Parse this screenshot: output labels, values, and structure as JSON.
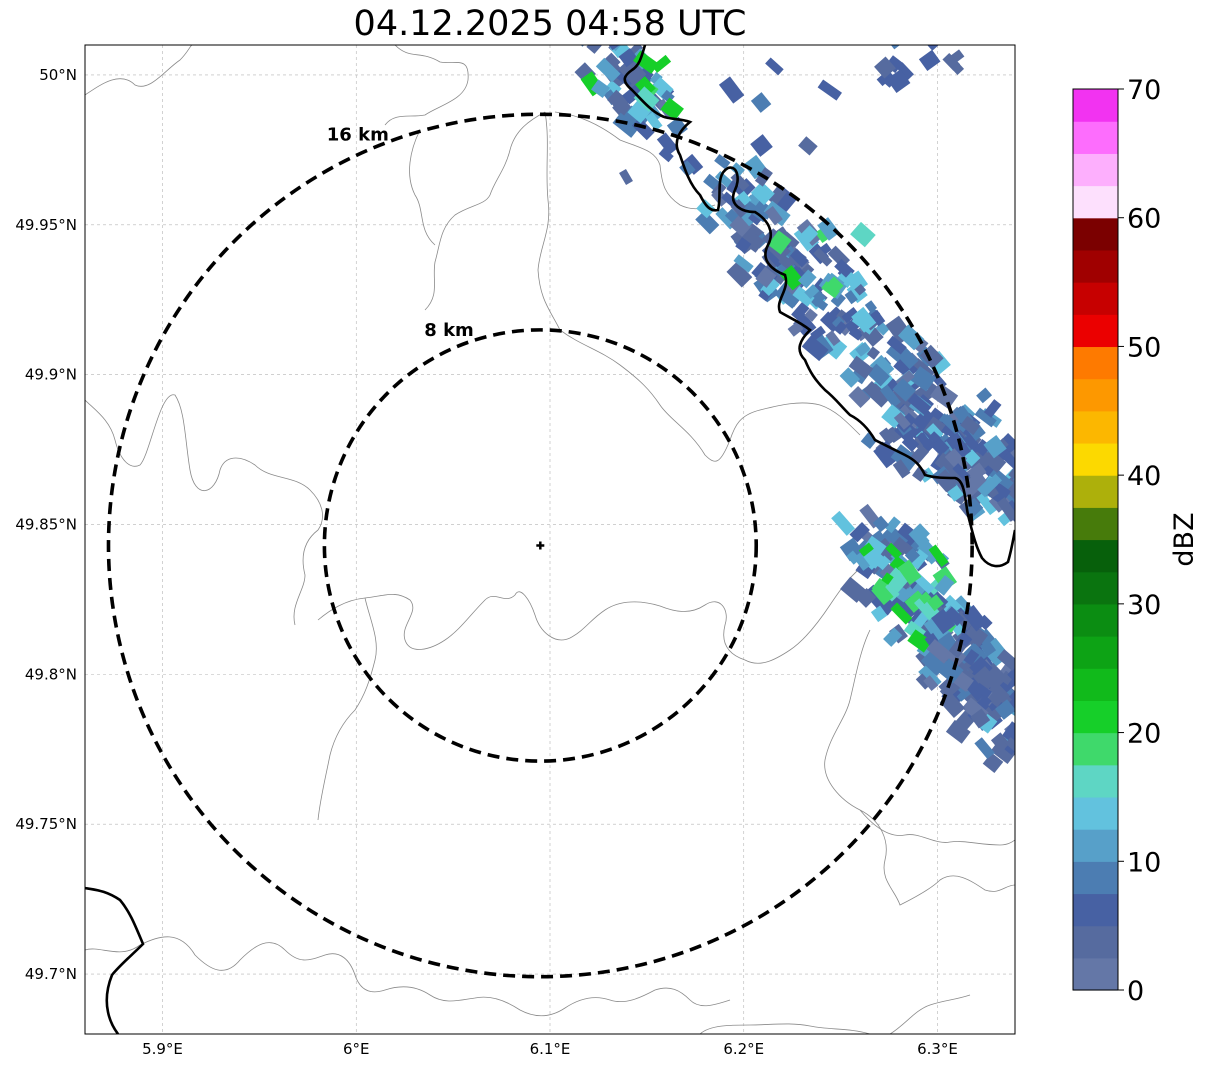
{
  "title": "04.12.2025 04:58 UTC",
  "map": {
    "extent": {
      "lon_min": 5.86,
      "lon_max": 6.34,
      "lat_min": 49.68,
      "lat_max": 50.01
    },
    "radar_site": {
      "lon": 6.095,
      "lat": 49.843
    },
    "lon_ticks": [
      {
        "value": 5.9,
        "label": "5.9°E"
      },
      {
        "value": 6.0,
        "label": "6°E"
      },
      {
        "value": 6.1,
        "label": "6.1°E"
      },
      {
        "value": 6.2,
        "label": "6.2°E"
      },
      {
        "value": 6.3,
        "label": "6.3°E"
      }
    ],
    "lat_ticks": [
      {
        "value": 50.0,
        "label": "50°N"
      },
      {
        "value": 49.95,
        "label": "49.95°N"
      },
      {
        "value": 49.9,
        "label": "49.9°N"
      },
      {
        "value": 49.85,
        "label": "49.85°N"
      },
      {
        "value": 49.8,
        "label": "49.8°N"
      },
      {
        "value": 49.75,
        "label": "49.75°N"
      },
      {
        "value": 49.7,
        "label": "49.7°N"
      }
    ],
    "rings": [
      {
        "range_km": 8,
        "label": "8 km"
      },
      {
        "range_km": 16,
        "label": "16 km"
      }
    ],
    "gridlines": true
  },
  "colorbar": {
    "label": "dBZ",
    "min": 0,
    "max": 70,
    "tick_labels": [
      "0",
      "10",
      "20",
      "30",
      "40",
      "50",
      "60",
      "70"
    ],
    "colors": [
      "#6477a7",
      "#566b9f",
      "#4761a3",
      "#4c7db2",
      "#57a0c9",
      "#62c2de",
      "#5ed6c4",
      "#3fd96b",
      "#16cf29",
      "#11ba1b",
      "#0da315",
      "#0b8d12",
      "#0a740f",
      "#07600b",
      "#477b0b",
      "#adb00b",
      "#fcd900",
      "#fcb700",
      "#fd9800",
      "#fe7a00",
      "#eb0000",
      "#c70000",
      "#a00000",
      "#7b0000",
      "#fde0fd",
      "#fdaffd",
      "#fd6dfd",
      "#f233f1"
    ]
  }
}
